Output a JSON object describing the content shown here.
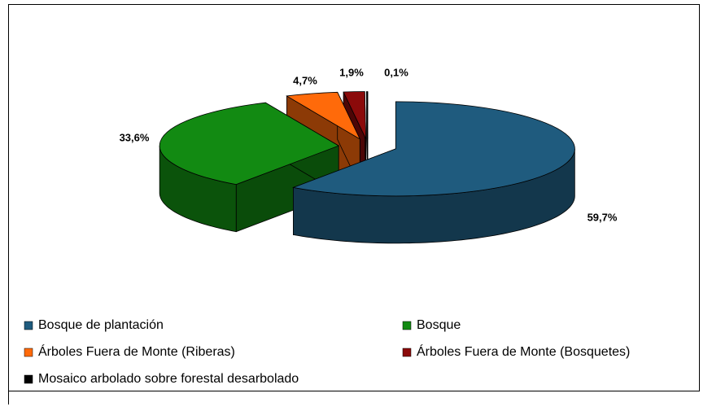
{
  "chart_data": {
    "type": "pie",
    "categories": [
      "Bosque de plantación",
      "Bosque",
      "Árboles Fuera de Monte (Riberas)",
      "Árboles Fuera de Monte (Bosquetes)",
      "Mosaico arbolado sobre forestal desarbolado"
    ],
    "values": [
      59.7,
      33.6,
      4.7,
      1.9,
      0.1
    ],
    "value_labels": [
      "59,7%",
      "33,6%",
      "4,7%",
      "1,9%",
      "0,1%"
    ],
    "colors": [
      "#1f5b7e",
      "#128a12",
      "#ff6a0a",
      "#8b0a0a",
      "#000000"
    ]
  }
}
